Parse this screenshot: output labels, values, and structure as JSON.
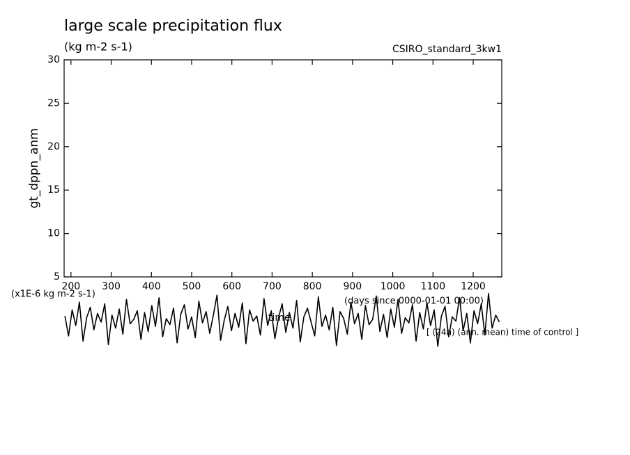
{
  "chart_data": {
    "type": "line",
    "title": "large scale precipitation flux",
    "subtitle": "(kg m-2 s-1)",
    "run_label": "CSIRO_standard_3kw1",
    "y_label": "gt_dppn_anm",
    "value_unit_label": "(x1E-6 kg m-2 s-1)",
    "x_label": "time",
    "x_unit_label": "(days since 0000-01-01 00:00)",
    "annotation": "[ (24h) (ann. mean) time of control ]",
    "xlim": [
      183,
      1271
    ],
    "ylim": [
      5,
      30
    ],
    "xticks": [
      200,
      300,
      400,
      500,
      600,
      700,
      800,
      900,
      1000,
      1100,
      1200
    ],
    "yticks": [
      5,
      10,
      15,
      20,
      25,
      30
    ],
    "grid": false,
    "x": [
      185,
      194,
      203,
      212,
      221,
      230,
      239,
      248,
      257,
      266,
      275,
      284,
      293,
      302,
      311,
      320,
      329,
      338,
      347,
      356,
      365,
      374,
      383,
      392,
      401,
      410,
      419,
      428,
      437,
      446,
      455,
      464,
      473,
      482,
      491,
      500,
      509,
      518,
      527,
      536,
      545,
      554,
      563,
      572,
      581,
      590,
      599,
      608,
      617,
      626,
      635,
      644,
      653,
      662,
      671,
      680,
      689,
      698,
      707,
      716,
      725,
      734,
      743,
      752,
      761,
      770,
      779,
      788,
      797,
      806,
      815,
      824,
      833,
      842,
      851,
      860,
      869,
      878,
      887,
      896,
      905,
      914,
      923,
      932,
      941,
      950,
      959,
      968,
      977,
      986,
      995,
      1004,
      1013,
      1022,
      1031,
      1040,
      1049,
      1058,
      1067,
      1076,
      1085,
      1094,
      1103,
      1112,
      1121,
      1130,
      1139,
      1148,
      1157,
      1166,
      1175,
      1184,
      1193,
      1202,
      1211,
      1220,
      1229,
      1238,
      1247,
      1256,
      1265
    ],
    "series": [
      {
        "color": "#000000",
        "values": [
          0.5,
          -1.8,
          1.2,
          -0.6,
          2.1,
          -2.4,
          0.3,
          1.5,
          -1.1,
          0.8,
          -0.2,
          1.9,
          -2.8,
          0.6,
          -0.9,
          1.3,
          -1.6,
          2.4,
          -0.4,
          0.1,
          1.1,
          -2.2,
          0.9,
          -1.3,
          1.7,
          -0.7,
          2.6,
          -1.9,
          0.2,
          -0.5,
          1.4,
          -2.6,
          0.7,
          1.8,
          -1.0,
          0.4,
          -2.0,
          2.2,
          -0.3,
          1.0,
          -1.5,
          0.6,
          2.9,
          -2.3,
          0.0,
          1.6,
          -1.2,
          0.8,
          -0.8,
          2.0,
          -2.7,
          1.2,
          -0.1,
          0.5,
          -1.7,
          2.5,
          -0.6,
          1.1,
          -2.1,
          0.3,
          1.9,
          -1.4,
          0.9,
          -0.9,
          2.3,
          -2.5,
          0.4,
          1.4,
          -0.2,
          -1.8,
          2.7,
          -0.7,
          0.6,
          -1.1,
          1.5,
          -2.9,
          1.0,
          0.2,
          -1.6,
          2.1,
          -0.4,
          0.8,
          -2.2,
          1.7,
          -0.5,
          0.1,
          2.8,
          -1.3,
          0.7,
          -2.0,
          1.3,
          -0.8,
          2.4,
          -1.5,
          0.3,
          -0.3,
          1.8,
          -2.4,
          0.9,
          -1.0,
          2.0,
          -0.6,
          1.2,
          -3.0,
          0.5,
          1.6,
          -1.9,
          0.4,
          -0.1,
          2.6,
          -1.2,
          0.8,
          -2.6,
          1.1,
          -0.4,
          1.9,
          -1.7,
          3.1,
          -0.9,
          0.6,
          -0.2
        ]
      }
    ]
  }
}
